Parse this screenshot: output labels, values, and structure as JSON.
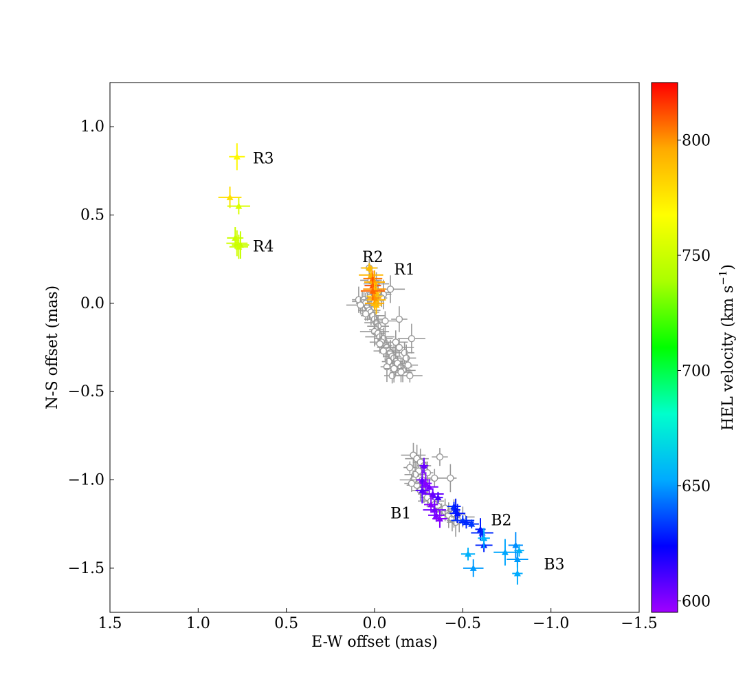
{
  "chart_data": {
    "type": "scatter",
    "xlabel": "E-W offset (mas)",
    "ylabel": "N-S offset (mas)",
    "xlim": [
      1.5,
      -1.5
    ],
    "ylim": [
      -1.75,
      1.25
    ],
    "x_ticks": [
      1.5,
      1.0,
      0.5,
      0.0,
      -0.5,
      -1.0,
      -1.5
    ],
    "x_tick_labels": [
      "1.5",
      "1.0",
      "0.5",
      "0.0",
      "−0.5",
      "−1.0",
      "−1.5"
    ],
    "y_ticks": [
      1.0,
      0.5,
      0.0,
      -0.5,
      -1.0,
      -1.5
    ],
    "y_tick_labels": [
      "1.0",
      "0.5",
      "0.0",
      "−0.5",
      "−1.0",
      "−1.5"
    ],
    "colorbar": {
      "label_main": "HEL velocity (km s",
      "label_sup": "−1",
      "label_close": ")",
      "range": [
        595,
        825
      ],
      "ticks": [
        600,
        650,
        700,
        750,
        800
      ],
      "tick_labels": [
        "600",
        "650",
        "700",
        "750",
        "800"
      ],
      "colormap": "gist_rainbow",
      "stops": [
        "#a000ff",
        "#0000ff",
        "#00aaff",
        "#00ffcc",
        "#00ff00",
        "#aaff00",
        "#ffff00",
        "#ffaa00",
        "#ff0000"
      ]
    },
    "grey_color": "#999999",
    "annotations": [
      {
        "text": "R3",
        "x": 0.69,
        "y": 0.82
      },
      {
        "text": "R4",
        "x": 0.69,
        "y": 0.32
      },
      {
        "text": "R2",
        "x": 0.07,
        "y": 0.26
      },
      {
        "text": "R1",
        "x": -0.11,
        "y": 0.19
      },
      {
        "text": "B1",
        "x": -0.09,
        "y": -1.19
      },
      {
        "text": "B2",
        "x": -0.66,
        "y": -1.23
      },
      {
        "text": "B3",
        "x": -0.96,
        "y": -1.48
      }
    ],
    "grey_series": {
      "name": "",
      "marker": "open-circle",
      "points": [
        [
          0.07,
          0.01
        ],
        [
          0.06,
          0.02
        ],
        [
          0.05,
          0.0
        ],
        [
          0.04,
          -0.02
        ],
        [
          0.03,
          -0.04
        ],
        [
          0.02,
          -0.05
        ],
        [
          0.01,
          -0.07
        ],
        [
          0.0,
          -0.09
        ],
        [
          -0.01,
          -0.11
        ],
        [
          -0.02,
          -0.13
        ],
        [
          -0.01,
          -0.15
        ],
        [
          0.0,
          -0.16
        ],
        [
          -0.02,
          -0.17
        ],
        [
          -0.03,
          -0.19
        ],
        [
          -0.05,
          -0.2
        ],
        [
          -0.04,
          -0.22
        ],
        [
          -0.06,
          -0.24
        ],
        [
          -0.07,
          -0.25
        ],
        [
          -0.08,
          -0.27
        ],
        [
          -0.09,
          -0.28
        ],
        [
          -0.1,
          -0.3
        ],
        [
          -0.11,
          -0.31
        ],
        [
          -0.12,
          -0.33
        ],
        [
          -0.13,
          -0.34
        ],
        [
          -0.15,
          -0.36
        ],
        [
          -0.16,
          -0.38
        ],
        [
          -0.08,
          -0.33
        ],
        [
          -0.05,
          -0.27
        ],
        [
          -0.03,
          -0.23
        ],
        [
          -0.12,
          -0.22
        ],
        [
          -0.14,
          -0.25
        ],
        [
          -0.17,
          -0.28
        ],
        [
          -0.18,
          -0.31
        ],
        [
          -0.19,
          -0.35
        ],
        [
          -0.1,
          -0.41
        ],
        [
          -0.2,
          -0.41
        ],
        [
          -0.14,
          -0.09
        ],
        [
          -0.21,
          -0.2
        ],
        [
          -0.09,
          0.08
        ],
        [
          -0.01,
          0.11
        ],
        [
          0.02,
          0.13
        ],
        [
          0.03,
          0.2
        ],
        [
          0.0,
          0.05
        ],
        [
          -0.02,
          0.06
        ],
        [
          -0.05,
          0.05
        ],
        [
          -0.04,
          0.03
        ],
        [
          -0.06,
          -0.1
        ],
        [
          -0.07,
          -0.36
        ],
        [
          -0.11,
          -0.37
        ],
        [
          -0.15,
          -0.39
        ],
        [
          0.09,
          0.02
        ],
        [
          0.08,
          -0.01
        ],
        [
          0.05,
          -0.06
        ],
        [
          -0.22,
          -0.86
        ],
        [
          -0.24,
          -0.88
        ],
        [
          -0.26,
          -0.9
        ],
        [
          -0.28,
          -0.92
        ],
        [
          -0.25,
          -0.95
        ],
        [
          -0.23,
          -0.97
        ],
        [
          -0.22,
          -1.0
        ],
        [
          -0.24,
          -1.03
        ],
        [
          -0.26,
          -1.06
        ],
        [
          -0.28,
          -1.08
        ],
        [
          -0.3,
          -1.1
        ],
        [
          -0.32,
          -1.12
        ],
        [
          -0.34,
          -1.14
        ],
        [
          -0.36,
          -1.15
        ],
        [
          -0.38,
          -1.17
        ],
        [
          -0.4,
          -1.18
        ],
        [
          -0.42,
          -1.2
        ],
        [
          -0.44,
          -1.22
        ],
        [
          -0.46,
          -1.24
        ],
        [
          -0.48,
          -1.23
        ],
        [
          -0.37,
          -0.87
        ],
        [
          -0.43,
          -0.99
        ],
        [
          -0.2,
          -0.93
        ],
        [
          -0.21,
          -1.02
        ],
        [
          -0.3,
          -0.96
        ],
        [
          -0.34,
          -0.99
        ],
        [
          -0.27,
          -1.0
        ],
        [
          -0.4,
          -1.16
        ],
        [
          -0.45,
          -1.19
        ],
        [
          -0.5,
          -1.21
        ]
      ]
    },
    "colored_series": {
      "name": "",
      "marker": "filled-triangle",
      "points": [
        [
          0.82,
          0.6,
          778
        ],
        [
          0.78,
          0.83,
          770
        ],
        [
          0.77,
          0.55,
          755
        ],
        [
          0.79,
          0.37,
          750
        ],
        [
          0.78,
          0.34,
          752
        ],
        [
          0.76,
          0.33,
          748
        ],
        [
          0.77,
          0.32,
          751
        ],
        [
          0.03,
          0.2,
          790
        ],
        [
          0.02,
          0.16,
          792
        ],
        [
          0.01,
          0.14,
          805
        ],
        [
          0.0,
          0.12,
          795
        ],
        [
          0.01,
          0.1,
          812
        ],
        [
          0.0,
          0.08,
          800
        ],
        [
          -0.01,
          0.06,
          790
        ],
        [
          0.0,
          0.04,
          788
        ],
        [
          -0.01,
          0.02,
          792
        ],
        [
          0.0,
          0.0,
          796
        ],
        [
          -0.01,
          -0.01,
          790
        ],
        [
          0.0,
          0.03,
          800
        ],
        [
          0.01,
          0.07,
          808
        ],
        [
          -0.28,
          -0.92,
          605
        ],
        [
          -0.27,
          -1.0,
          603
        ],
        [
          -0.29,
          -1.02,
          600
        ],
        [
          -0.27,
          -1.06,
          608
        ],
        [
          -0.31,
          -1.04,
          602
        ],
        [
          -0.33,
          -1.08,
          605
        ],
        [
          -0.32,
          -1.14,
          600
        ],
        [
          -0.34,
          -1.17,
          603
        ],
        [
          -0.36,
          -1.1,
          610
        ],
        [
          -0.35,
          -1.2,
          602
        ],
        [
          -0.37,
          -1.22,
          600
        ],
        [
          -0.45,
          -1.15,
          630
        ],
        [
          -0.46,
          -1.17,
          628
        ],
        [
          -0.47,
          -1.19,
          627
        ],
        [
          -0.5,
          -1.23,
          632
        ],
        [
          -0.52,
          -1.24,
          630
        ],
        [
          -0.55,
          -1.25,
          633
        ],
        [
          -0.6,
          -1.28,
          628
        ],
        [
          -0.61,
          -1.3,
          631
        ],
        [
          -0.62,
          -1.37,
          630
        ],
        [
          -0.53,
          -1.42,
          655
        ],
        [
          -0.56,
          -1.5,
          650
        ],
        [
          -0.62,
          -1.33,
          655
        ],
        [
          -0.74,
          -1.41,
          652
        ],
        [
          -0.8,
          -1.37,
          648
        ],
        [
          -0.81,
          -1.45,
          650
        ],
        [
          -0.82,
          -1.4,
          655
        ],
        [
          -0.81,
          -1.53,
          653
        ]
      ]
    }
  }
}
